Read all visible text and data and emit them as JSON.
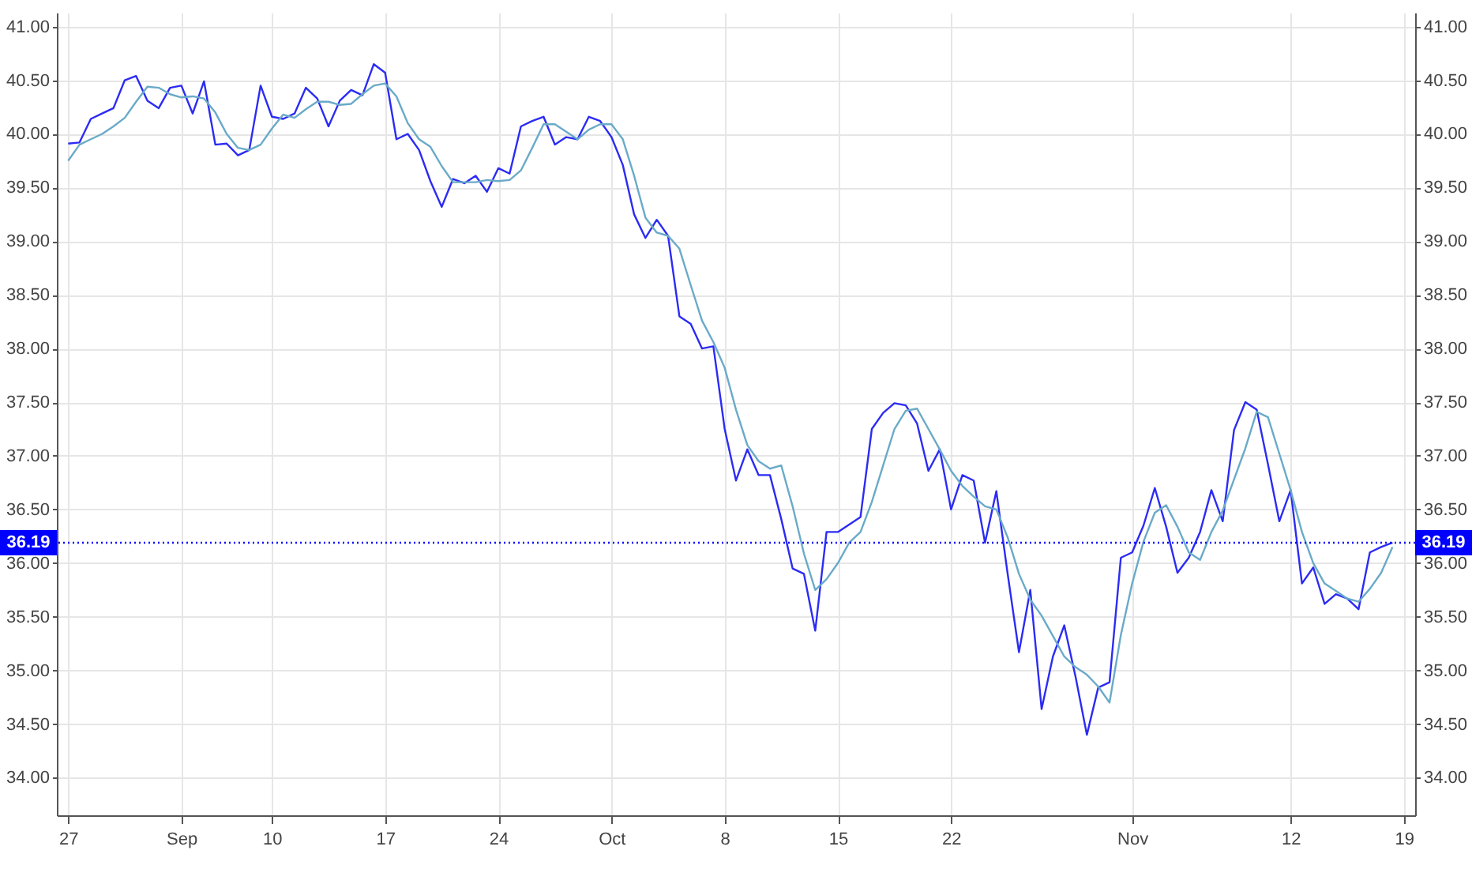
{
  "chart_data": {
    "type": "line",
    "categories": [
      "27",
      null,
      null,
      null,
      null,
      null,
      null,
      null,
      null,
      null,
      "Sep",
      null,
      null,
      null,
      null,
      null,
      null,
      null,
      "10",
      null,
      null,
      null,
      null,
      null,
      null,
      null,
      null,
      null,
      "17",
      null,
      null,
      null,
      null,
      null,
      null,
      null,
      null,
      null,
      "24",
      null,
      null,
      null,
      null,
      null,
      null,
      null,
      null,
      null,
      "Oct",
      null,
      null,
      null,
      null,
      null,
      null,
      null,
      null,
      null,
      "8",
      null,
      null,
      null,
      null,
      null,
      null,
      null,
      null,
      null,
      "15",
      null,
      null,
      null,
      null,
      null,
      null,
      null,
      null,
      null,
      "22",
      null,
      null,
      null,
      null,
      null,
      null,
      null,
      null,
      null,
      null,
      null,
      null,
      null,
      null,
      null,
      "Nov",
      null,
      null,
      null,
      null,
      null,
      null,
      null,
      null,
      null,
      null,
      null,
      null,
      null,
      "12",
      null,
      null,
      null,
      null,
      null,
      null,
      null,
      null,
      null,
      "19"
    ],
    "series": [
      {
        "color": "#2b2bf5",
        "values": [
          39.91,
          39.92,
          40.14,
          40.19,
          40.24,
          40.5,
          40.54,
          40.31,
          40.24,
          40.43,
          40.45,
          40.19,
          40.49,
          39.9,
          39.91,
          39.8,
          39.85,
          40.45,
          40.16,
          40.14,
          40.19,
          40.43,
          40.33,
          40.07,
          40.31,
          40.41,
          40.36,
          40.65,
          40.57,
          39.95,
          40.0,
          39.85,
          39.56,
          39.32,
          39.58,
          39.54,
          39.61,
          39.46,
          39.68,
          39.63,
          40.07,
          40.12,
          40.16,
          39.9,
          39.97,
          39.95,
          40.16,
          40.12,
          39.97,
          39.71,
          39.25,
          39.03,
          39.2,
          39.05,
          38.3,
          38.23,
          38.0,
          38.02,
          37.25,
          36.77,
          37.06,
          36.82,
          36.82,
          36.41,
          35.95,
          35.9,
          35.37,
          36.29,
          36.29,
          36.36,
          36.43,
          37.25,
          37.4,
          37.49,
          37.47,
          37.3,
          36.86,
          37.06,
          36.5,
          36.82,
          36.77,
          36.19,
          36.67,
          35.9,
          35.17,
          35.75,
          34.64,
          35.13,
          35.42,
          34.94,
          34.4,
          34.84,
          34.89,
          36.05,
          36.1,
          36.35,
          36.7,
          36.34,
          35.91,
          36.05,
          36.29,
          36.68,
          36.39,
          37.24,
          37.5,
          37.43,
          36.92,
          36.39,
          36.68,
          35.81,
          35.96,
          35.62,
          35.71,
          35.67,
          35.57,
          36.1,
          36.15,
          36.19,
          null
        ]
      },
      {
        "color": "#6aaac8",
        "values": [
          39.75,
          39.9,
          39.95,
          40.0,
          40.07,
          40.15,
          40.3,
          40.44,
          40.43,
          40.37,
          40.34,
          40.35,
          40.33,
          40.2,
          40.0,
          39.87,
          39.85,
          39.9,
          40.05,
          40.18,
          40.15,
          40.23,
          40.3,
          40.3,
          40.27,
          40.28,
          40.37,
          40.45,
          40.47,
          40.35,
          40.1,
          39.95,
          39.88,
          39.7,
          39.55,
          39.55,
          39.55,
          39.57,
          39.56,
          39.57,
          39.66,
          39.87,
          40.09,
          40.09,
          40.02,
          39.95,
          40.04,
          40.09,
          40.09,
          39.95,
          39.61,
          39.22,
          39.08,
          39.05,
          38.93,
          38.59,
          38.26,
          38.06,
          37.82,
          37.43,
          37.1,
          36.95,
          36.88,
          36.91,
          36.53,
          36.09,
          35.75,
          35.85,
          36.0,
          36.19,
          36.29,
          36.57,
          36.91,
          37.25,
          37.42,
          37.44,
          37.25,
          37.06,
          36.86,
          36.72,
          36.62,
          36.53,
          36.5,
          36.24,
          35.9,
          35.66,
          35.51,
          35.32,
          35.13,
          35.03,
          34.96,
          34.85,
          34.7,
          35.33,
          35.81,
          36.2,
          36.47,
          36.54,
          36.34,
          36.1,
          36.03,
          36.29,
          36.49,
          36.78,
          37.07,
          37.41,
          37.36,
          37.02,
          36.68,
          36.29,
          36.0,
          35.81,
          35.74,
          35.67,
          35.64,
          35.76,
          35.91,
          36.15,
          null
        ]
      }
    ],
    "ylim": [
      33.65,
      41.13
    ],
    "yticks": [
      {
        "value": 34,
        "label": "34.00"
      },
      {
        "value": 34.5,
        "label": "34.50"
      },
      {
        "value": 35,
        "label": "35.00"
      },
      {
        "value": 35.5,
        "label": "35.50"
      },
      {
        "value": 36,
        "label": "36.00"
      },
      {
        "value": 36.5,
        "label": "36.50"
      },
      {
        "value": 37,
        "label": "37.00"
      },
      {
        "value": 37.5,
        "label": "37.50"
      },
      {
        "value": 38,
        "label": "38.00"
      },
      {
        "value": 38.5,
        "label": "38.50"
      },
      {
        "value": 39,
        "label": "39.00"
      },
      {
        "value": 39.5,
        "label": "39.50"
      },
      {
        "value": 40,
        "label": "40.00"
      },
      {
        "value": 40.5,
        "label": "40.50"
      },
      {
        "value": 41,
        "label": "41.00"
      }
    ],
    "y2lim": [
      33.65,
      41.13
    ],
    "y2ticks": [
      {
        "value": 34,
        "label": "34.00"
      },
      {
        "value": 34.5,
        "label": "34.50"
      },
      {
        "value": 35,
        "label": "35.00"
      },
      {
        "value": 35.5,
        "label": "35.50"
      },
      {
        "value": 36,
        "label": "36.00"
      },
      {
        "value": 36.5,
        "label": "36.50"
      },
      {
        "value": 37,
        "label": "37.00"
      },
      {
        "value": 37.5,
        "label": "37.50"
      },
      {
        "value": 38,
        "label": "38.00"
      },
      {
        "value": 38.5,
        "label": "38.50"
      },
      {
        "value": 39,
        "label": "39.00"
      },
      {
        "value": 39.5,
        "label": "39.50"
      },
      {
        "value": 40,
        "label": "40.00"
      },
      {
        "value": 40.5,
        "label": "40.50"
      },
      {
        "value": 41,
        "label": "41.00"
      }
    ],
    "ref_lines": [
      {
        "axis": "y",
        "value": 36.19,
        "label": "36.19",
        "color": "#0000ff",
        "line_style": "dotted"
      }
    ],
    "grid": true,
    "marker": "none",
    "line_style": "solid"
  }
}
